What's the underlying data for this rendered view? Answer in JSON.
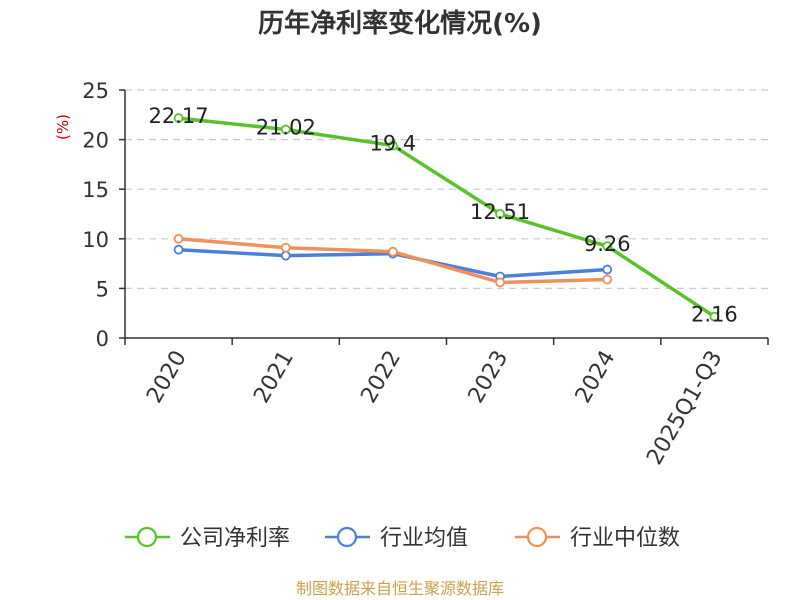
{
  "chart_data": {
    "type": "line",
    "title": "历年净利率变化情况(%)",
    "ylabel": "(%)",
    "categories": [
      "2020",
      "2021",
      "2022",
      "2023",
      "2024",
      "2025Q1-Q3"
    ],
    "ylim": [
      0,
      25
    ],
    "yticks": [
      0,
      5,
      10,
      15,
      20,
      25
    ],
    "grid": true,
    "legend_position": "bottom",
    "series": [
      {
        "name": "公司净利率",
        "color": "#5ac229",
        "values": [
          22.17,
          21.02,
          19.4,
          12.51,
          9.26,
          2.16
        ],
        "labels": [
          "22.17",
          "21.02",
          "19.4",
          "12.51",
          "9.26",
          "2.16"
        ]
      },
      {
        "name": "行业均值",
        "color": "#4a7fdb",
        "values": [
          8.9,
          8.3,
          8.5,
          6.2,
          6.9,
          null
        ]
      },
      {
        "name": "行业中位数",
        "color": "#f0905a",
        "values": [
          10.0,
          9.1,
          8.7,
          5.6,
          5.9,
          null
        ]
      }
    ],
    "ylabel_color": "#cc0000"
  },
  "source": {
    "text": "制图数据来自恒生聚源数据库",
    "color": "#c9a24a"
  }
}
